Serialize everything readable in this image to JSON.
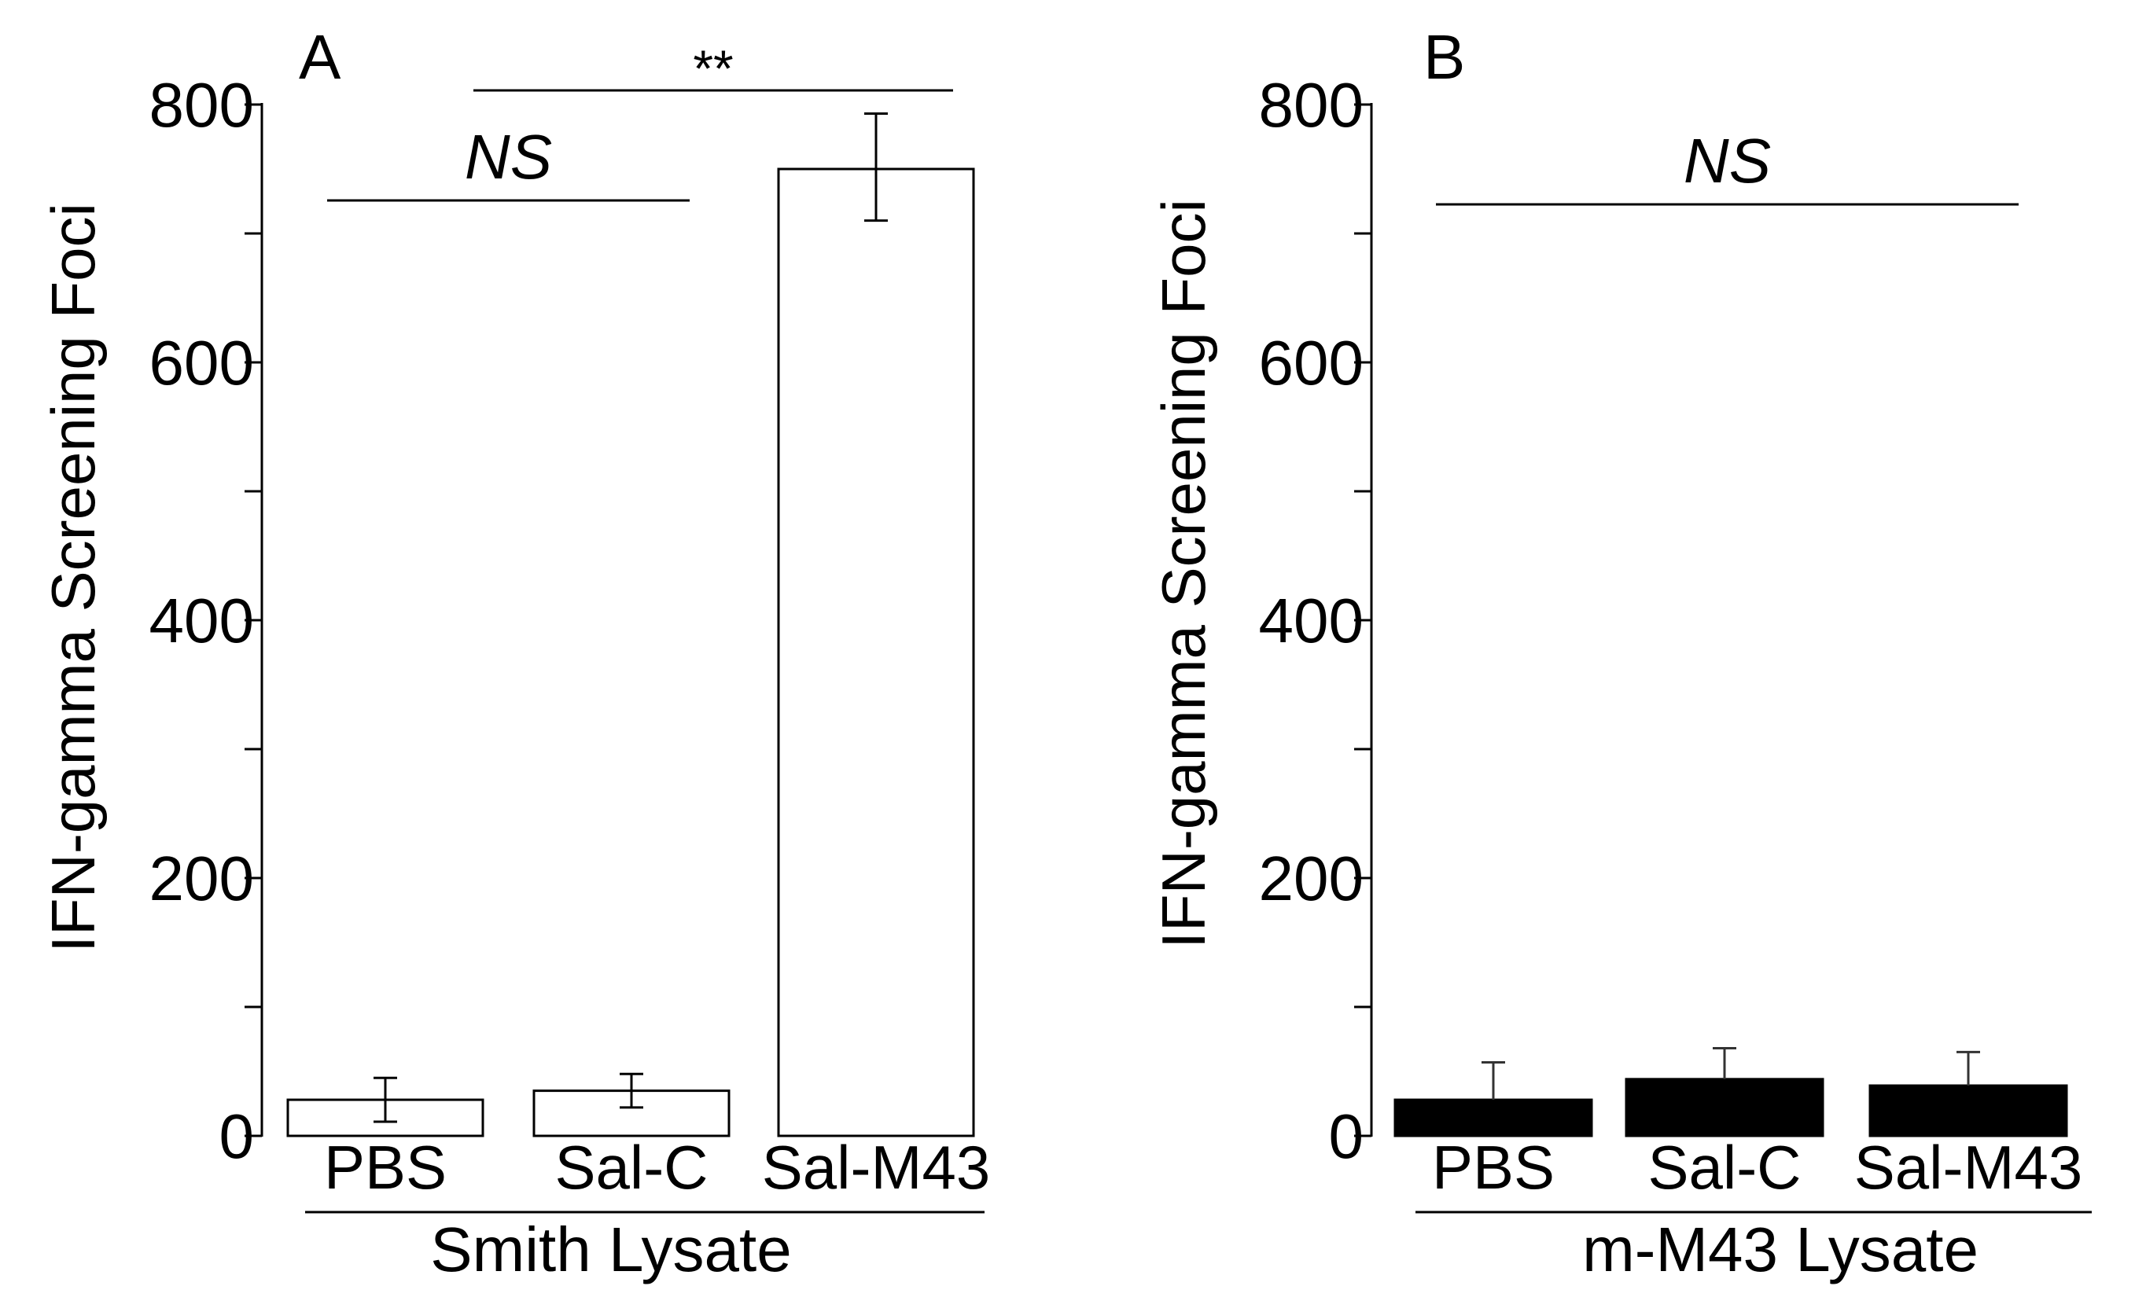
{
  "chart_data": [
    {
      "panel_label": "A",
      "type": "bar",
      "categories": [
        "PBS",
        "Sal-C",
        "Sal-M43"
      ],
      "values": [
        28,
        35,
        750
      ],
      "errors": [
        {
          "low": 11,
          "high": 45
        },
        {
          "low": 22,
          "high": 48
        },
        {
          "low": 710,
          "high": 793
        }
      ],
      "bar_color": "#ffffff",
      "ylabel": "IFN-gamma Screening Foci",
      "xlabel": "Smith Lysate",
      "ylim": [
        0,
        800
      ],
      "yticks": [
        "0",
        "200",
        "400",
        "600",
        "800"
      ],
      "annotations": [
        {
          "text": "NS",
          "from": "PBS",
          "to": "Sal-C"
        },
        {
          "text": "**",
          "from": "Sal-C",
          "to": "Sal-M43"
        }
      ],
      "grid": false
    },
    {
      "panel_label": "B",
      "type": "bar",
      "categories": [
        "PBS",
        "Sal-C",
        "Sal-M43"
      ],
      "values": [
        28,
        44,
        39
      ],
      "errors": [
        {
          "low": 28,
          "high": 57
        },
        {
          "low": 44,
          "high": 68
        },
        {
          "low": 39,
          "high": 65
        }
      ],
      "bar_color": "#000000",
      "ylabel": "IFN-gamma Screening Foci",
      "xlabel": "m-M43 Lysate",
      "ylim": [
        0,
        800
      ],
      "yticks": [
        "0",
        "200",
        "400",
        "600",
        "800"
      ],
      "annotations": [
        {
          "text": "NS",
          "from": "PBS",
          "to": "Sal-M43"
        }
      ],
      "grid": false
    }
  ]
}
